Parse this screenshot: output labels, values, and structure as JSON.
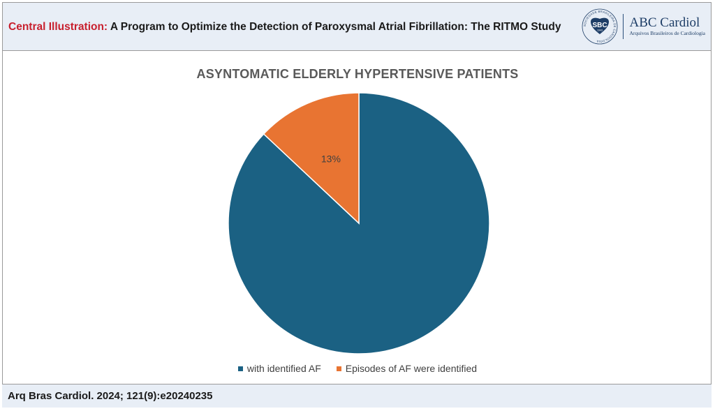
{
  "header": {
    "lead": "Central Illustration:",
    "title": "A Program to Optimize the Detection of Paroxysmal Atrial Fibrillation: The RITMO Study"
  },
  "logo": {
    "seal_text": "SBC",
    "seal_year": "1943",
    "seal_ring": "SOCIEDADE BRASILEIRA DE CARDIOLOGIA",
    "name": "ABC Cardiol",
    "subtitle": "Arquivos Brasileiros de Cardiologia"
  },
  "chart_data": {
    "type": "pie",
    "title": "ASYNTOMATIC ELDERLY HYPERTENSIVE PATIENTS",
    "slices": [
      {
        "label": "with identified AF",
        "value": 87,
        "color": "#1b6183",
        "data_label": ""
      },
      {
        "label": "Episodes of AF were identified",
        "value": 13,
        "color": "#e87432",
        "data_label": "13%"
      }
    ],
    "legend_position": "bottom"
  },
  "footer": {
    "citation": "Arq Bras Cardiol. 2024; 121(9):e20240235"
  }
}
